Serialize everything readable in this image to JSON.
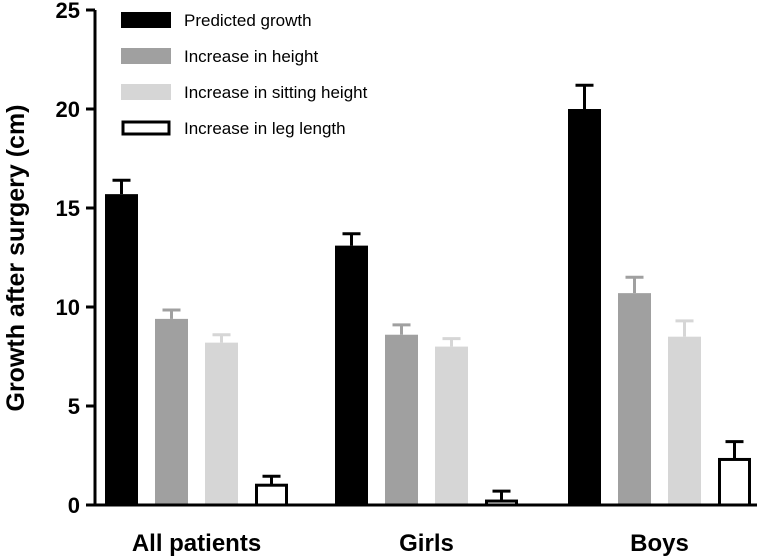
{
  "chart_data": {
    "type": "bar",
    "title": "",
    "xlabel": "",
    "ylabel": "Growth after surgery (cm)",
    "ylim": [
      0,
      25
    ],
    "yticks": [
      0,
      5,
      10,
      15,
      20,
      25
    ],
    "grid": false,
    "legend_position": "top-left",
    "categories": [
      "All patients",
      "Girls",
      "Boys"
    ],
    "series": [
      {
        "name": "Predicted growth",
        "color": "#000000",
        "fill": "solid",
        "values": [
          15.7,
          13.1,
          20.0
        ],
        "errors": [
          0.7,
          0.6,
          1.2
        ]
      },
      {
        "name": "Increase in height",
        "color": "#a0a0a0",
        "fill": "solid",
        "values": [
          9.4,
          8.6,
          10.7
        ],
        "errors": [
          0.45,
          0.5,
          0.8
        ]
      },
      {
        "name": "Increase in sitting height",
        "color": "#d6d6d6",
        "fill": "solid",
        "values": [
          8.2,
          8.0,
          8.5
        ],
        "errors": [
          0.4,
          0.4,
          0.8
        ]
      },
      {
        "name": "Increase in leg length",
        "color": "#000000",
        "fill": "outline",
        "values": [
          1.0,
          0.2,
          2.3
        ],
        "errors": [
          0.45,
          0.5,
          0.9
        ]
      }
    ]
  }
}
